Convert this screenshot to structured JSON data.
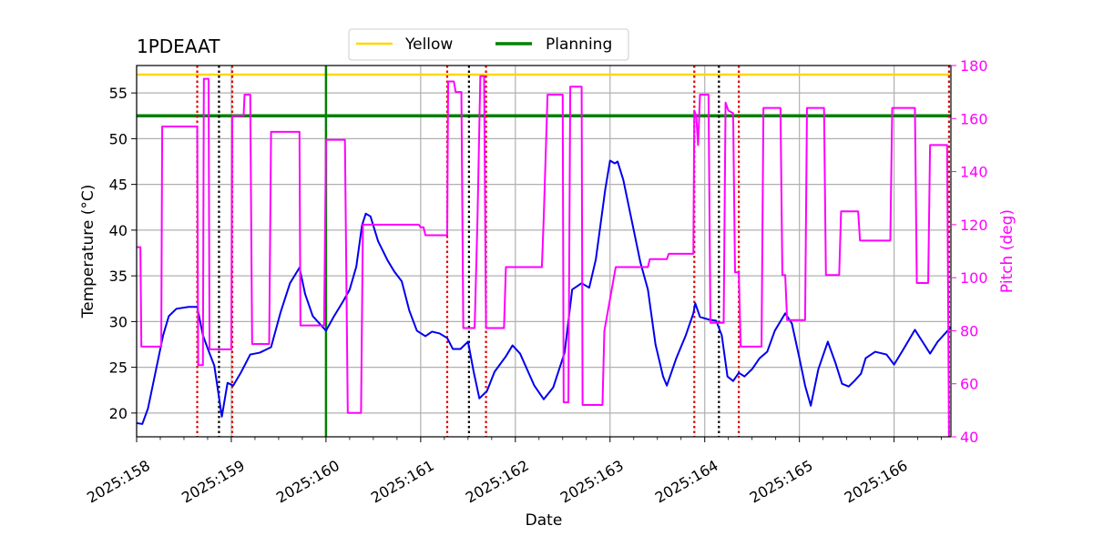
{
  "chart_data": {
    "type": "line",
    "title": "1PDEAAT",
    "xlabel": "Date",
    "ylabel_left": "Temperature ($^\\circ$C)",
    "ylabel_left_display": "Temperature (°C)",
    "ylabel_right": "Pitch (deg)",
    "xlim": [
      158.0,
      166.6
    ],
    "ylim_left": [
      17.4,
      58.0
    ],
    "ylim_right": [
      40,
      180
    ],
    "x_ticks": [
      158,
      159,
      160,
      161,
      162,
      163,
      164,
      165,
      166
    ],
    "x_tick_labels": [
      "2025:158",
      "2025:159",
      "2025:160",
      "2025:161",
      "2025:162",
      "2025:163",
      "2025:164",
      "2025:165",
      "2025:166"
    ],
    "y_left_ticks": [
      20,
      25,
      30,
      35,
      40,
      45,
      50,
      55
    ],
    "y_right_ticks": [
      40,
      60,
      80,
      100,
      120,
      140,
      160,
      180
    ],
    "grid": true,
    "legend": {
      "placement": "top-center",
      "entries": [
        "Yellow",
        "Planning"
      ]
    },
    "colors": {
      "temperature": "#0000ee",
      "pitch": "#ff00ff",
      "yellow": "#ffd700",
      "planning": "#008000",
      "red_marker": "#dd0000",
      "black_marker": "#000000",
      "right_axis": "#ff00ff"
    },
    "yellow_limit": 57.0,
    "planning_limit": 52.5,
    "planning_vertical_x": 160.0,
    "red_dotted_x": [
      158.64,
      159.01,
      161.28,
      161.69,
      163.89,
      164.36,
      166.58
    ],
    "black_dotted_x": [
      158.87,
      161.51,
      164.15
    ],
    "series": [
      {
        "name": "Temperature",
        "axis": "left",
        "points": [
          [
            158.0,
            18.9
          ],
          [
            158.06,
            18.8
          ],
          [
            158.12,
            20.5
          ],
          [
            158.2,
            24.5
          ],
          [
            158.28,
            28.5
          ],
          [
            158.34,
            30.6
          ],
          [
            158.42,
            31.4
          ],
          [
            158.55,
            31.6
          ],
          [
            158.64,
            31.6
          ],
          [
            158.7,
            28.5
          ],
          [
            158.76,
            26.8
          ],
          [
            158.82,
            25.2
          ],
          [
            158.9,
            19.6
          ],
          [
            158.96,
            23.3
          ],
          [
            159.02,
            23.0
          ],
          [
            159.1,
            24.4
          ],
          [
            159.2,
            26.4
          ],
          [
            159.3,
            26.6
          ],
          [
            159.42,
            27.2
          ],
          [
            159.52,
            31.0
          ],
          [
            159.62,
            34.2
          ],
          [
            159.72,
            35.9
          ],
          [
            159.78,
            33.0
          ],
          [
            159.86,
            30.6
          ],
          [
            160.0,
            29.0
          ],
          [
            160.08,
            30.5
          ],
          [
            160.18,
            32.2
          ],
          [
            160.25,
            33.5
          ],
          [
            160.32,
            36.0
          ],
          [
            160.38,
            40.5
          ],
          [
            160.42,
            41.8
          ],
          [
            160.47,
            41.5
          ],
          [
            160.55,
            38.8
          ],
          [
            160.65,
            36.7
          ],
          [
            160.72,
            35.5
          ],
          [
            160.8,
            34.4
          ],
          [
            160.88,
            31.2
          ],
          [
            160.96,
            29.0
          ],
          [
            161.05,
            28.4
          ],
          [
            161.12,
            28.9
          ],
          [
            161.2,
            28.7
          ],
          [
            161.28,
            28.2
          ],
          [
            161.34,
            27.0
          ],
          [
            161.42,
            27.0
          ],
          [
            161.5,
            27.8
          ],
          [
            161.56,
            24.5
          ],
          [
            161.62,
            21.6
          ],
          [
            161.7,
            22.4
          ],
          [
            161.78,
            24.5
          ],
          [
            161.9,
            26.2
          ],
          [
            161.97,
            27.4
          ],
          [
            162.05,
            26.5
          ],
          [
            162.2,
            23.0
          ],
          [
            162.3,
            21.5
          ],
          [
            162.4,
            22.8
          ],
          [
            162.52,
            26.6
          ],
          [
            162.6,
            33.5
          ],
          [
            162.7,
            34.2
          ],
          [
            162.78,
            33.7
          ],
          [
            162.85,
            36.8
          ],
          [
            162.95,
            44.5
          ],
          [
            163.0,
            47.6
          ],
          [
            163.05,
            47.3
          ],
          [
            163.08,
            47.5
          ],
          [
            163.14,
            45.5
          ],
          [
            163.22,
            41.5
          ],
          [
            163.32,
            36.5
          ],
          [
            163.4,
            33.5
          ],
          [
            163.48,
            27.5
          ],
          [
            163.56,
            24.0
          ],
          [
            163.6,
            23.0
          ],
          [
            163.7,
            26.0
          ],
          [
            163.8,
            28.5
          ],
          [
            163.88,
            30.9
          ],
          [
            163.9,
            32.0
          ],
          [
            163.95,
            30.5
          ],
          [
            164.05,
            30.2
          ],
          [
            164.12,
            30.1
          ],
          [
            164.18,
            28.5
          ],
          [
            164.24,
            24.0
          ],
          [
            164.3,
            23.5
          ],
          [
            164.36,
            24.4
          ],
          [
            164.42,
            24.0
          ],
          [
            164.5,
            24.8
          ],
          [
            164.58,
            26.0
          ],
          [
            164.66,
            26.7
          ],
          [
            164.74,
            29.0
          ],
          [
            164.85,
            30.9
          ],
          [
            164.92,
            29.8
          ],
          [
            165.0,
            26.0
          ],
          [
            165.06,
            23.0
          ],
          [
            165.12,
            20.8
          ],
          [
            165.2,
            24.8
          ],
          [
            165.3,
            27.8
          ],
          [
            165.38,
            25.5
          ],
          [
            165.45,
            23.2
          ],
          [
            165.52,
            22.9
          ],
          [
            165.58,
            23.5
          ],
          [
            165.65,
            24.3
          ],
          [
            165.7,
            26.0
          ],
          [
            165.8,
            26.7
          ],
          [
            165.92,
            26.4
          ],
          [
            166.0,
            25.3
          ],
          [
            166.1,
            27.0
          ],
          [
            166.22,
            29.1
          ],
          [
            166.3,
            27.8
          ],
          [
            166.38,
            26.5
          ],
          [
            166.46,
            27.8
          ],
          [
            166.6,
            29.4
          ]
        ]
      },
      {
        "name": "Pitch",
        "axis": "right",
        "points": [
          [
            158.0,
            111.5
          ],
          [
            158.04,
            111.5
          ],
          [
            158.05,
            74
          ],
          [
            158.26,
            74
          ],
          [
            158.27,
            157
          ],
          [
            158.64,
            157
          ],
          [
            158.65,
            67
          ],
          [
            158.7,
            67
          ],
          [
            158.71,
            175
          ],
          [
            158.76,
            175
          ],
          [
            158.77,
            73
          ],
          [
            159.0,
            73
          ],
          [
            159.01,
            161
          ],
          [
            159.13,
            161
          ],
          [
            159.14,
            169
          ],
          [
            159.2,
            169
          ],
          [
            159.22,
            75
          ],
          [
            159.4,
            75
          ],
          [
            159.42,
            155
          ],
          [
            159.72,
            155
          ],
          [
            159.73,
            82
          ],
          [
            159.98,
            82
          ],
          [
            160.0,
            152
          ],
          [
            160.2,
            152
          ],
          [
            160.23,
            49
          ],
          [
            160.37,
            49
          ],
          [
            160.39,
            120
          ],
          [
            160.98,
            120
          ],
          [
            161.0,
            119
          ],
          [
            161.03,
            119
          ],
          [
            161.05,
            116
          ],
          [
            161.28,
            116
          ],
          [
            161.29,
            174
          ],
          [
            161.35,
            174
          ],
          [
            161.37,
            170
          ],
          [
            161.43,
            170
          ],
          [
            161.45,
            81
          ],
          [
            161.57,
            81
          ],
          [
            161.6,
            122
          ],
          [
            161.63,
            176
          ],
          [
            161.67,
            176
          ],
          [
            161.69,
            81
          ],
          [
            161.88,
            81
          ],
          [
            161.9,
            104
          ],
          [
            162.28,
            104
          ],
          [
            162.3,
            123
          ],
          [
            162.34,
            169
          ],
          [
            162.5,
            169
          ],
          [
            162.51,
            53
          ],
          [
            162.56,
            53
          ],
          [
            162.58,
            172
          ],
          [
            162.7,
            172
          ],
          [
            162.71,
            52
          ],
          [
            162.92,
            52
          ],
          [
            162.94,
            80
          ],
          [
            163.06,
            104
          ],
          [
            163.4,
            104
          ],
          [
            163.42,
            107
          ],
          [
            163.6,
            107
          ],
          [
            163.62,
            109
          ],
          [
            163.88,
            109
          ],
          [
            163.89,
            163
          ],
          [
            163.91,
            161
          ],
          [
            163.93,
            150
          ],
          [
            163.95,
            169
          ],
          [
            164.04,
            169
          ],
          [
            164.06,
            83
          ],
          [
            164.2,
            83
          ],
          [
            164.22,
            166
          ],
          [
            164.25,
            163
          ],
          [
            164.3,
            162
          ],
          [
            164.32,
            102
          ],
          [
            164.36,
            102
          ],
          [
            164.38,
            74
          ],
          [
            164.6,
            74
          ],
          [
            164.62,
            164
          ],
          [
            164.8,
            164
          ],
          [
            164.82,
            101
          ],
          [
            164.85,
            101
          ],
          [
            164.87,
            84
          ],
          [
            165.06,
            84
          ],
          [
            165.08,
            164
          ],
          [
            165.26,
            164
          ],
          [
            165.28,
            101
          ],
          [
            165.42,
            101
          ],
          [
            165.44,
            125
          ],
          [
            165.62,
            125
          ],
          [
            165.64,
            114
          ],
          [
            165.96,
            114
          ],
          [
            165.98,
            164
          ],
          [
            166.22,
            164
          ],
          [
            166.24,
            98
          ],
          [
            166.36,
            98
          ],
          [
            166.38,
            150
          ],
          [
            166.56,
            150
          ],
          [
            166.58,
            40
          ]
        ]
      }
    ]
  }
}
